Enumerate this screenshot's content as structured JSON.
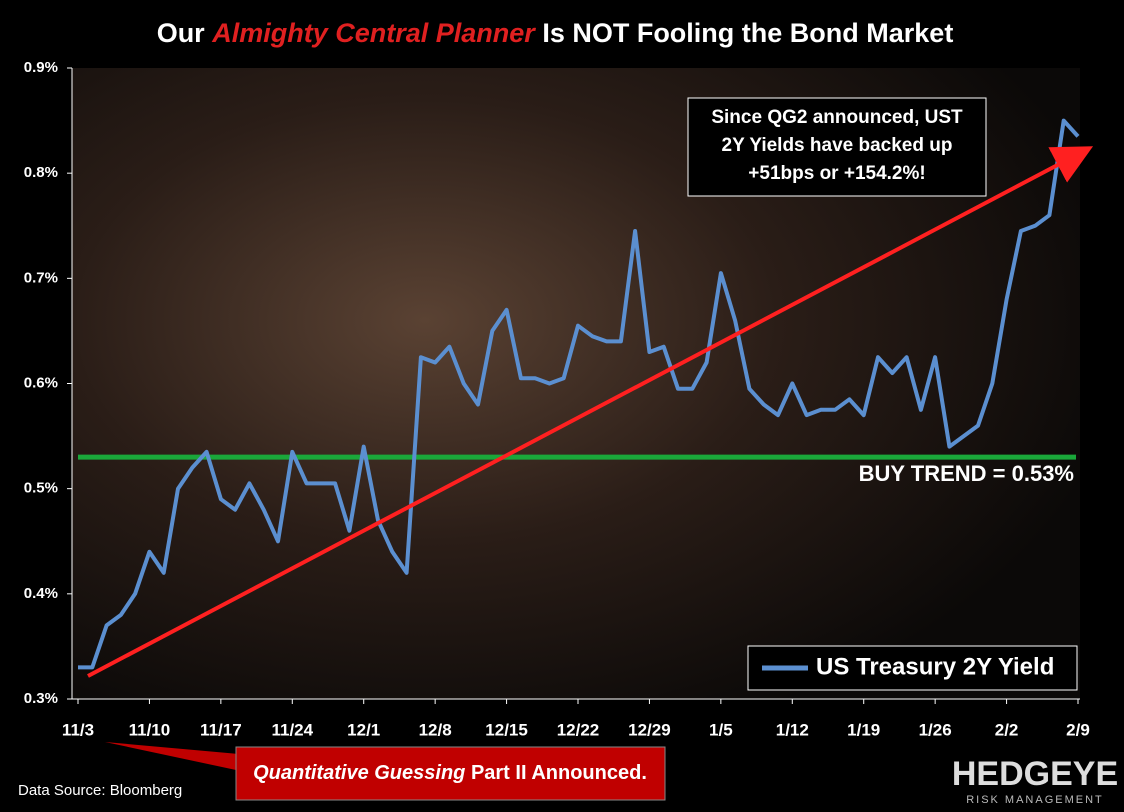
{
  "chart_data": {
    "type": "line",
    "title": [
      "Our",
      "Almighty Central Planner",
      "Is NOT Fooling the Bond Market"
    ],
    "categories": [
      "11/3",
      null,
      null,
      null,
      null,
      "11/10",
      null,
      null,
      null,
      null,
      "11/17",
      null,
      null,
      null,
      null,
      "11/24",
      null,
      null,
      null,
      null,
      "12/1",
      null,
      null,
      null,
      null,
      "12/8",
      null,
      null,
      null,
      null,
      "12/15",
      null,
      null,
      null,
      null,
      "12/22",
      null,
      null,
      null,
      null,
      "12/29",
      null,
      null,
      null,
      null,
      "1/5",
      null,
      null,
      null,
      null,
      "1/12",
      null,
      null,
      null,
      null,
      "1/19",
      null,
      null,
      null,
      null,
      "1/26",
      null,
      null,
      null,
      null,
      "2/2",
      null,
      null,
      null,
      null,
      "2/9"
    ],
    "series": [
      {
        "name": "US Treasury 2Y Yield",
        "color": "#5b8fd0",
        "values": [
          0.33,
          0.33,
          0.37,
          0.38,
          0.4,
          0.44,
          0.42,
          0.5,
          0.52,
          0.535,
          0.49,
          0.48,
          0.505,
          0.48,
          0.45,
          0.535,
          0.505,
          0.505,
          0.505,
          0.46,
          0.54,
          0.47,
          0.44,
          0.42,
          0.625,
          0.62,
          0.635,
          0.6,
          0.58,
          0.65,
          0.67,
          0.605,
          0.605,
          0.6,
          0.605,
          0.655,
          0.645,
          0.64,
          0.64,
          0.745,
          0.63,
          0.635,
          0.595,
          0.595,
          0.62,
          0.705,
          0.66,
          0.595,
          0.58,
          0.57,
          0.6,
          0.57,
          0.575,
          0.575,
          0.585,
          0.57,
          0.625,
          0.61,
          0.625,
          0.575,
          0.625,
          0.54,
          0.55,
          0.56,
          0.6,
          0.68,
          0.745,
          0.75,
          0.76,
          0.85,
          0.835
        ]
      }
    ],
    "ylim": [
      0.3,
      0.9
    ],
    "yticks": [
      {
        "value": 0.3,
        "label": "0.3%"
      },
      {
        "value": 0.4,
        "label": "0.4%"
      },
      {
        "value": 0.5,
        "label": "0.5%"
      },
      {
        "value": 0.6,
        "label": "0.6%"
      },
      {
        "value": 0.7,
        "label": "0.7%"
      },
      {
        "value": 0.8,
        "label": "0.8%"
      },
      {
        "value": 0.9,
        "label": "0.9%"
      }
    ],
    "reference_line": {
      "value": 0.53,
      "label": "BUY TREND = 0.53%",
      "color": "#1aa83a"
    },
    "annotation": [
      "Since QG2 announced, UST",
      "2Y Yields have backed up",
      "+51bps or +154.2%!"
    ],
    "callout": [
      "Quantitative Guessing",
      "Part II Announced."
    ],
    "source": "Data Source: Bloomberg",
    "brand": {
      "name": "HEDGEYE",
      "tagline": "RISK MANAGEMENT"
    },
    "legend": "bottom-right"
  }
}
